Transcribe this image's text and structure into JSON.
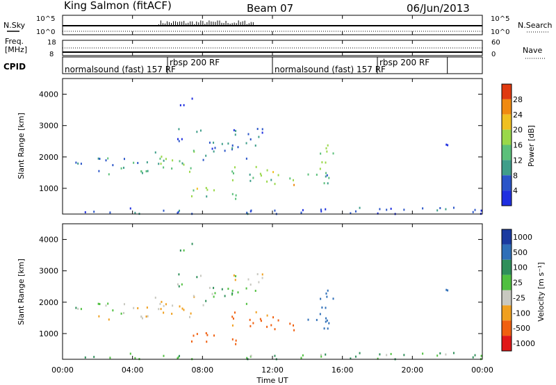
{
  "header": {
    "station": "King Salmon (fitACF)",
    "beam": "Beam 07",
    "date": "06/Jun/2013"
  },
  "noise_panel": {
    "left_label": "N.Sky",
    "right_label": "N.Search",
    "left_ticks": [
      "10^5",
      "10^0"
    ],
    "right_ticks": [
      "10^5",
      "10^0"
    ]
  },
  "freq_panel": {
    "left_label_line1": "Freq.",
    "left_label_line2": "[MHz]",
    "right_label": "Nave",
    "left_ticks": [
      "18",
      "8"
    ],
    "right_ticks": [
      "60",
      "0"
    ]
  },
  "cpid_panel": {
    "label": "CPID",
    "segments": [
      {
        "start_h": 0,
        "end_h": 6.0,
        "text": "normalsound (fast) 157 RF"
      },
      {
        "start_h": 6.0,
        "end_h": 12.0,
        "text": "rbsp 200 RF"
      },
      {
        "start_h": 12.0,
        "end_h": 18.0,
        "text": "normalsound (fast) 157 RF"
      },
      {
        "start_h": 18.0,
        "end_h": 22.0,
        "text": "rbsp 200 RF"
      }
    ]
  },
  "power_panel": {
    "ylabel": "Slant Range [km]",
    "yticks": [
      "1000",
      "2000",
      "3000",
      "4000"
    ],
    "cbar_label": "Power [dB]",
    "cbar_ticks": [
      "4",
      "8",
      "12",
      "16",
      "20",
      "24",
      "28"
    ]
  },
  "velocity_panel": {
    "ylabel": "Slant Range [km]",
    "yticks": [
      "1000",
      "2000",
      "3000",
      "4000"
    ],
    "cbar_label": "Velocity  [m s⁻¹]",
    "cbar_ticks": [
      "1000",
      "500",
      "100",
      "25",
      "-25",
      "-100",
      "-500",
      "-1000"
    ]
  },
  "xaxis": {
    "label": "Time UT",
    "ticks": [
      "00:00",
      "04:00",
      "08:00",
      "12:00",
      "16:00",
      "20:00",
      "00:00"
    ]
  },
  "colors": {
    "power_scale": [
      "#1f2fe0",
      "#2a55c8",
      "#3f9e8a",
      "#5cc07a",
      "#9ad84a",
      "#f0c020",
      "#f08a10",
      "#e03a10"
    ],
    "velocity_scale": [
      "#1a3aa0",
      "#2f6fb8",
      "#2f8f5a",
      "#50c040",
      "#c8c8c0",
      "#f0a020",
      "#f06010",
      "#e01818"
    ]
  },
  "chart_data": {
    "type": "heatmap",
    "time_range_hours": [
      0,
      24
    ],
    "range_km": [
      180,
      4500
    ],
    "power_db_range": [
      0,
      32
    ],
    "velocity_range": [
      -1250,
      1250
    ],
    "scatter_regions": [
      {
        "t0": 0.0,
        "t1": 2.0,
        "r0": 1750,
        "r1": 1950,
        "power": 6,
        "velocity": 20
      },
      {
        "t0": 2.0,
        "t1": 6.0,
        "r0": 1400,
        "r1": 2000,
        "power": 10,
        "velocity": -10
      },
      {
        "t0": 5.0,
        "t1": 7.5,
        "r0": 1500,
        "r1": 2200,
        "power": 14,
        "velocity": -30
      },
      {
        "t0": 6.5,
        "t1": 8.0,
        "r0": 2500,
        "r1": 3000,
        "power": 6,
        "velocity": 10
      },
      {
        "t0": 8.0,
        "t1": 10.5,
        "r0": 1900,
        "r1": 2500,
        "power": 7,
        "velocity": 15
      },
      {
        "t0": 9.0,
        "t1": 11.5,
        "r0": 2300,
        "r1": 2900,
        "power": 6,
        "velocity": -5
      },
      {
        "t0": 7.0,
        "t1": 9.0,
        "r0": 700,
        "r1": 1100,
        "power": 16,
        "velocity": -300
      },
      {
        "t0": 8.5,
        "t1": 10.0,
        "r0": 650,
        "r1": 900,
        "power": 12,
        "velocity": -150
      },
      {
        "t0": 9.5,
        "t1": 12.0,
        "r0": 1100,
        "r1": 1700,
        "power": 14,
        "velocity": -120
      },
      {
        "t0": 12.0,
        "t1": 13.5,
        "r0": 1100,
        "r1": 1600,
        "power": 20,
        "velocity": -300
      },
      {
        "t0": 13.5,
        "t1": 15.5,
        "r0": 1000,
        "r1": 1500,
        "power": 12,
        "velocity": 150
      },
      {
        "t0": 14.5,
        "t1": 15.5,
        "r0": 1600,
        "r1": 2500,
        "power": 16,
        "velocity": 400
      },
      {
        "t0": 6.5,
        "t1": 7.5,
        "r0": 3600,
        "r1": 4000,
        "power": 5,
        "velocity": 40
      },
      {
        "t0": 21.5,
        "t1": 22.5,
        "r0": 2300,
        "r1": 2500,
        "power": 6,
        "velocity": 200
      },
      {
        "t0": 0.0,
        "t1": 24.0,
        "r0": 180,
        "r1": 380,
        "power": 5,
        "velocity": 20
      }
    ]
  }
}
